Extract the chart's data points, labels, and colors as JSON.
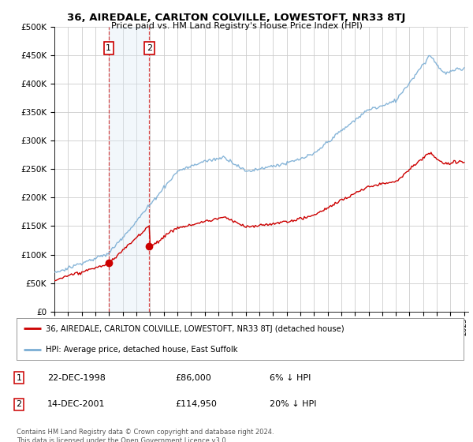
{
  "title": "36, AIREDALE, CARLTON COLVILLE, LOWESTOFT, NR33 8TJ",
  "subtitle": "Price paid vs. HM Land Registry's House Price Index (HPI)",
  "sale1_date": 1998.97,
  "sale1_price": 86000,
  "sale2_date": 2001.95,
  "sale2_price": 114950,
  "legend_line1": "36, AIREDALE, CARLTON COLVILLE, LOWESTOFT, NR33 8TJ (detached house)",
  "legend_line2": "HPI: Average price, detached house, East Suffolk",
  "table_row1": [
    "1",
    "22-DEC-1998",
    "£86,000",
    "6% ↓ HPI"
  ],
  "table_row2": [
    "2",
    "14-DEC-2001",
    "£114,950",
    "20% ↓ HPI"
  ],
  "footnote": "Contains HM Land Registry data © Crown copyright and database right 2024.\nThis data is licensed under the Open Government Licence v3.0.",
  "hpi_color": "#7aadd4",
  "price_color": "#cc0000",
  "vline_color": "#cc0000",
  "vspan_color": "#daeaf5",
  "background_color": "#ffffff",
  "grid_color": "#cccccc",
  "xlim_left": 1995,
  "xlim_right": 2025.3,
  "ylim_top": 500000,
  "ylim_bottom": 0
}
